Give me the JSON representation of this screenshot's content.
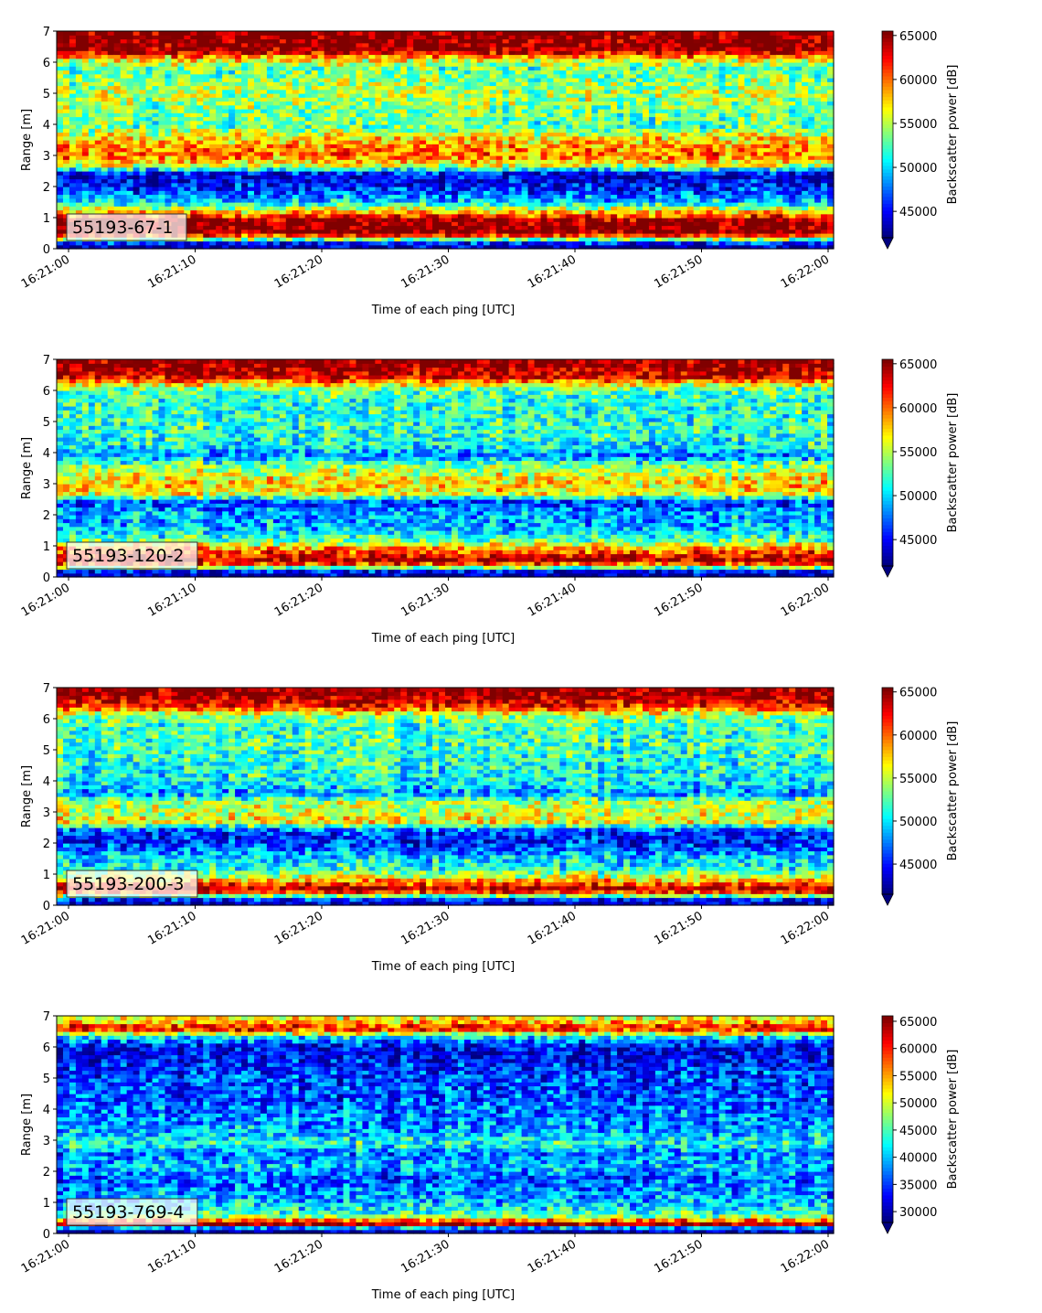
{
  "chart_data": [
    {
      "type": "heatmap",
      "tag": "55193-67-1",
      "xlabel": "Time of each ping [UTC]",
      "ylabel": "Range [m]",
      "colorbar_label": "Backscatter power [dB]",
      "colormap": "jet",
      "x_ticks": [
        "16:21:00",
        "16:21:10",
        "16:21:20",
        "16:21:30",
        "16:21:40",
        "16:21:50",
        "16:22:00"
      ],
      "y_ticks": [
        "0",
        "1",
        "2",
        "3",
        "4",
        "5",
        "6",
        "7"
      ],
      "ylim": [
        0,
        7
      ],
      "clim": [
        42000,
        65500
      ],
      "colorbar_ticks": [
        "45000",
        "50000",
        "55000",
        "60000",
        "65000"
      ],
      "profile_range_m": [
        0.15,
        0.5,
        0.9,
        1.2,
        1.5,
        1.8,
        2.1,
        2.4,
        2.7,
        3.0,
        3.3,
        3.6,
        3.9,
        4.2,
        4.6,
        5.0,
        5.4,
        5.8,
        6.1,
        6.4,
        6.8
      ],
      "profile_db": [
        43000,
        65500,
        65500,
        58000,
        50000,
        47000,
        45000,
        44000,
        56000,
        60000,
        59000,
        57000,
        53000,
        53000,
        54000,
        55000,
        54000,
        53000,
        57000,
        65500,
        65500
      ]
    },
    {
      "type": "heatmap",
      "tag": "55193-120-2",
      "xlabel": "Time of each ping [UTC]",
      "ylabel": "Range [m]",
      "colorbar_label": "Backscatter power [dB]",
      "colormap": "jet",
      "x_ticks": [
        "16:21:00",
        "16:21:10",
        "16:21:20",
        "16:21:30",
        "16:21:40",
        "16:21:50",
        "16:22:00"
      ],
      "y_ticks": [
        "0",
        "1",
        "2",
        "3",
        "4",
        "5",
        "6",
        "7"
      ],
      "ylim": [
        0,
        7
      ],
      "clim": [
        42000,
        65500
      ],
      "colorbar_ticks": [
        "45000",
        "50000",
        "55000",
        "60000",
        "65000"
      ],
      "profile_range_m": [
        0.15,
        0.5,
        0.9,
        1.2,
        1.5,
        1.8,
        2.1,
        2.4,
        2.7,
        3.0,
        3.3,
        3.6,
        3.9,
        4.2,
        4.6,
        5.0,
        5.4,
        5.8,
        6.1,
        6.4,
        6.8
      ],
      "profile_db": [
        43000,
        65500,
        60000,
        53000,
        50000,
        49000,
        49000,
        46000,
        57000,
        58000,
        56000,
        54000,
        48000,
        51000,
        52000,
        52000,
        52000,
        52000,
        54000,
        63000,
        65500
      ]
    },
    {
      "type": "heatmap",
      "tag": "55193-200-3",
      "xlabel": "Time of each ping [UTC]",
      "ylabel": "Range [m]",
      "colorbar_label": "Backscatter power [dB]",
      "colormap": "jet",
      "x_ticks": [
        "16:21:00",
        "16:21:10",
        "16:21:20",
        "16:21:30",
        "16:21:40",
        "16:21:50",
        "16:22:00"
      ],
      "y_ticks": [
        "0",
        "1",
        "2",
        "3",
        "4",
        "5",
        "6",
        "7"
      ],
      "ylim": [
        0,
        7
      ],
      "clim": [
        41500,
        65500
      ],
      "colorbar_ticks": [
        "45000",
        "50000",
        "55000",
        "60000",
        "65000"
      ],
      "profile_range_m": [
        0.15,
        0.5,
        0.9,
        1.2,
        1.5,
        1.8,
        2.1,
        2.4,
        2.7,
        3.0,
        3.3,
        3.6,
        3.9,
        4.2,
        4.6,
        5.0,
        5.4,
        5.8,
        6.1,
        6.4,
        6.8
      ],
      "profile_db": [
        43000,
        65500,
        56000,
        51000,
        50000,
        47000,
        45000,
        46000,
        57000,
        55000,
        55000,
        48000,
        50000,
        51000,
        51000,
        52000,
        52000,
        52000,
        54000,
        62000,
        65500
      ]
    },
    {
      "type": "heatmap",
      "tag": "55193-769-4",
      "xlabel": "Time of each ping [UTC]",
      "ylabel": "Range [m]",
      "colorbar_label": "Backscatter power [dB]",
      "colormap": "jet",
      "x_ticks": [
        "16:21:00",
        "16:21:10",
        "16:21:20",
        "16:21:30",
        "16:21:40",
        "16:21:50",
        "16:22:00"
      ],
      "y_ticks": [
        "0",
        "1",
        "2",
        "3",
        "4",
        "5",
        "6",
        "7"
      ],
      "ylim": [
        0,
        7
      ],
      "clim": [
        28000,
        66000
      ],
      "colorbar_ticks": [
        "30000",
        "35000",
        "40000",
        "45000",
        "50000",
        "55000",
        "60000",
        "65000"
      ],
      "profile_range_m": [
        0.15,
        0.3,
        0.6,
        1.0,
        1.4,
        1.8,
        2.2,
        2.6,
        2.9,
        3.2,
        3.6,
        4.0,
        4.4,
        4.8,
        5.2,
        5.6,
        6.0,
        6.3,
        6.6,
        6.9
      ],
      "profile_db": [
        30000,
        66000,
        45000,
        40000,
        38000,
        36000,
        40000,
        37000,
        44000,
        40000,
        38000,
        37000,
        36000,
        36000,
        35000,
        33000,
        32000,
        40000,
        62000,
        52000
      ]
    }
  ]
}
